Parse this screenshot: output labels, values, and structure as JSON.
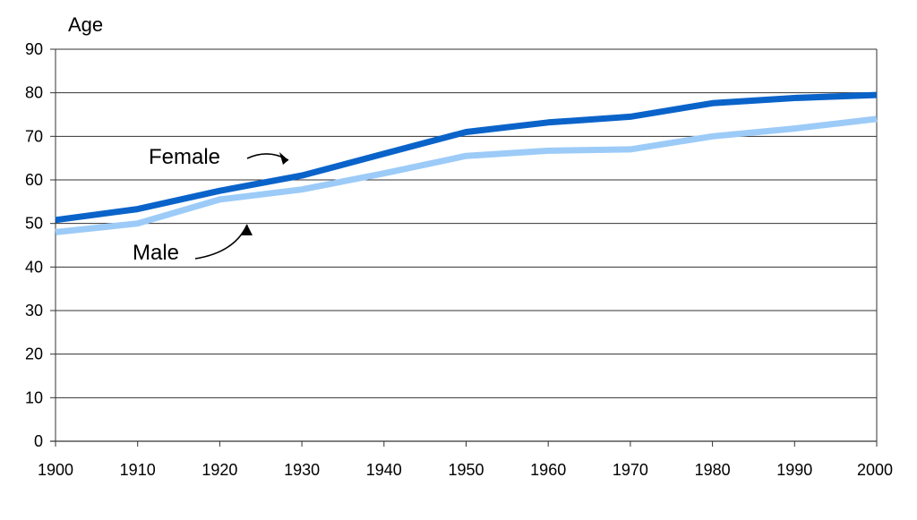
{
  "chart_data": {
    "type": "line",
    "title": "",
    "xlabel": "",
    "ylabel": "Age",
    "xlim": [
      1900,
      2000
    ],
    "ylim": [
      0,
      90
    ],
    "x_ticks": [
      "1900",
      "1910",
      "1920",
      "1930",
      "1940",
      "1950",
      "1960",
      "1970",
      "1980",
      "1990",
      "2000"
    ],
    "y_ticks": [
      "0",
      "10",
      "20",
      "30",
      "40",
      "50",
      "60",
      "70",
      "80",
      "90"
    ],
    "grid": true,
    "legend": "none",
    "x": [
      1900,
      1910,
      1920,
      1930,
      1940,
      1950,
      1960,
      1970,
      1980,
      1990,
      2000
    ],
    "series": [
      {
        "name": "Female",
        "color": "#0a63c9",
        "values": [
          50.8,
          53.3,
          57.5,
          61,
          66,
          71,
          73.2,
          74.5,
          77.6,
          78.8,
          79.5
        ]
      },
      {
        "name": "Male",
        "color": "#9ccbf8",
        "values": [
          48,
          50,
          55.5,
          57.8,
          61.5,
          65.5,
          66.7,
          67,
          70,
          71.8,
          74
        ]
      }
    ],
    "annotations": [
      {
        "text": "Female",
        "series": "Female"
      },
      {
        "text": "Male",
        "series": "Male"
      }
    ]
  }
}
